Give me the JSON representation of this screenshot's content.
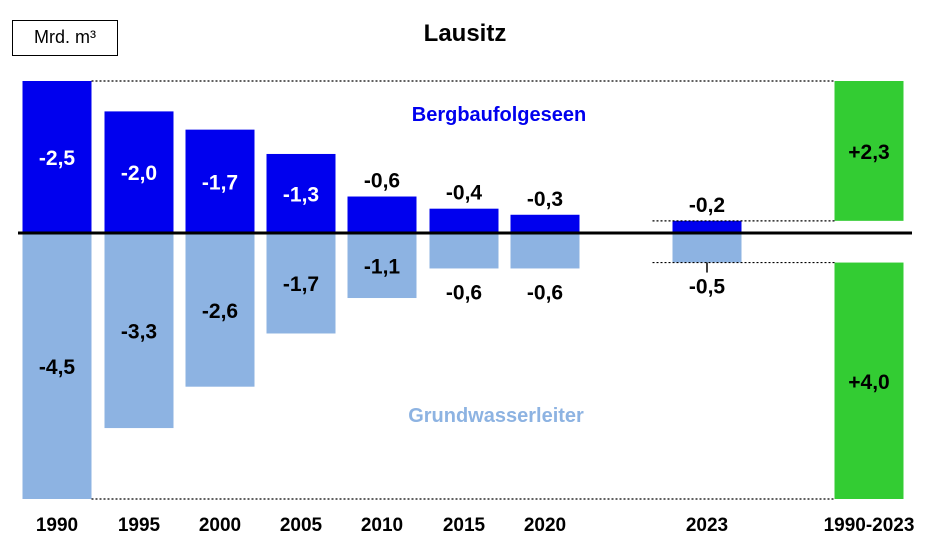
{
  "unit_label": "Mrd. m³",
  "chart_data": {
    "type": "bar",
    "title": "Lausitz",
    "unit": "Mrd. m³",
    "categories": [
      "1990",
      "1995",
      "2000",
      "2005",
      "2010",
      "2015",
      "2020",
      "2023",
      "1990-2023"
    ],
    "series": [
      {
        "name": "Bergbaufolgeseen",
        "values": [
          -2.5,
          -2.0,
          -1.7,
          -1.3,
          -0.6,
          -0.4,
          -0.3,
          -0.2,
          2.3
        ],
        "labels": [
          "-2,5",
          "-2,0",
          "-1,7",
          "-1,3",
          "-0,6",
          "-0,4",
          "-0,3",
          "-0,2",
          "+2,3"
        ],
        "color": "#0000ee",
        "total_color": "#33cc33"
      },
      {
        "name": "Grundwasserleiter",
        "values": [
          -4.5,
          -3.3,
          -2.6,
          -1.7,
          -1.1,
          -0.6,
          -0.6,
          -0.5,
          4.0
        ],
        "labels": [
          "-4,5",
          "-3,3",
          "-2,6",
          "-1,7",
          "-1,1",
          "-0,6",
          "-0,6",
          "-0,5",
          "+4,0"
        ],
        "color": "#8db3e2",
        "total_color": "#33cc33"
      }
    ],
    "legend_colors": {
      "Bergbaufolgeseen": "#0000ee",
      "Grundwasserleiter": "#8db3e2"
    }
  }
}
